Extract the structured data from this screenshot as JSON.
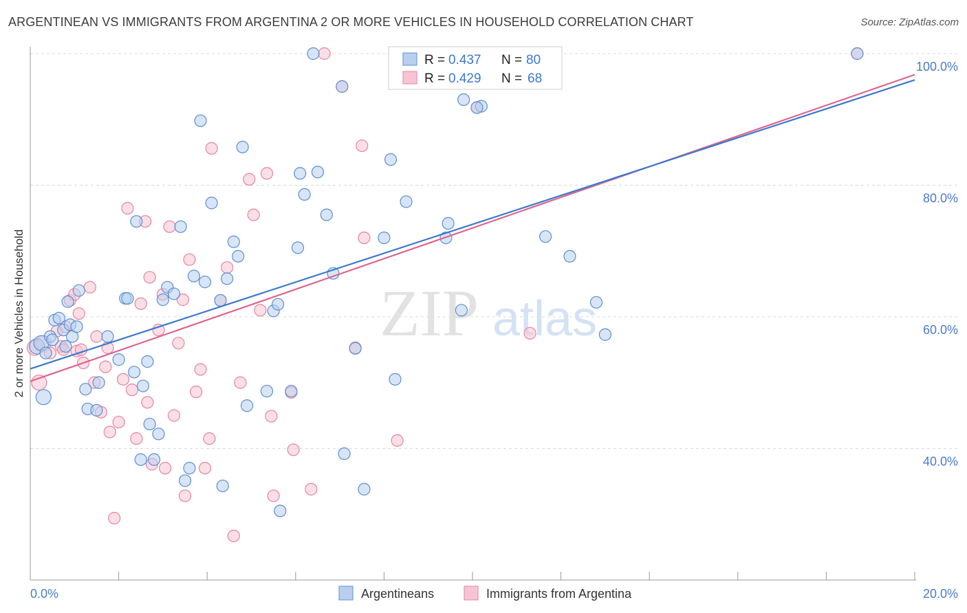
{
  "title": "ARGENTINEAN VS IMMIGRANTS FROM ARGENTINA 2 OR MORE VEHICLES IN HOUSEHOLD CORRELATION CHART",
  "source": "Source: ZipAtlas.com",
  "watermark": {
    "zip": "ZIP",
    "atlas": "atlas"
  },
  "colors": {
    "blue_fill": "#b8d0ee",
    "blue_stroke": "#5b8fd4",
    "blue_line": "#3b78d0",
    "pink_fill": "#f7c4d4",
    "pink_stroke": "#e7839f",
    "pink_line": "#e0648d",
    "tick_text": "#4a7cc9",
    "grid": "#d8d8d8"
  },
  "legend": {
    "r_label": "R =",
    "n_label": "N =",
    "series": [
      {
        "r": "0.437",
        "n": "80"
      },
      {
        "r": "0.429",
        "n": "68"
      }
    ]
  },
  "bottom_legend": [
    "Argentineans",
    "Immigrants from Argentina"
  ],
  "chart_data": {
    "type": "scatter",
    "title": "ARGENTINEAN VS IMMIGRANTS FROM ARGENTINA 2 OR MORE VEHICLES IN HOUSEHOLD CORRELATION CHART",
    "xlabel": "",
    "ylabel": "2 or more Vehicles in Household",
    "xlim": [
      0,
      20
    ],
    "ylim": [
      20,
      100
    ],
    "x_tick_labels": [
      "0.0%",
      "20.0%"
    ],
    "y_ticks": [
      40,
      60,
      80,
      100
    ],
    "y_tick_labels": [
      "40.0%",
      "60.0%",
      "80.0%",
      "100.0%"
    ],
    "grid": "horizontal dashed",
    "legend_position": "top-center",
    "series": [
      {
        "name": "Argentineans",
        "trend": {
          "x": [
            0,
            20
          ],
          "y": [
            52.1,
            96.0
          ]
        },
        "points": [
          [
            0.15,
            55.5
          ],
          [
            0.25,
            56
          ],
          [
            0.35,
            54.5
          ],
          [
            0.45,
            57
          ],
          [
            0.55,
            59.5
          ],
          [
            0.65,
            59.8
          ],
          [
            0.75,
            58
          ],
          [
            0.8,
            55.5
          ],
          [
            0.85,
            62.3
          ],
          [
            0.95,
            57
          ],
          [
            0.9,
            58.8
          ],
          [
            1.1,
            64
          ],
          [
            1.25,
            49
          ],
          [
            1.3,
            46
          ],
          [
            1.5,
            45.8
          ],
          [
            1.55,
            50
          ],
          [
            1.75,
            57
          ],
          [
            2.0,
            53.5
          ],
          [
            2.15,
            62.8
          ],
          [
            2.2,
            62.8
          ],
          [
            2.35,
            51.6
          ],
          [
            2.55,
            49.5
          ],
          [
            2.65,
            53.2
          ],
          [
            2.7,
            43.7
          ],
          [
            2.8,
            38.3
          ],
          [
            2.9,
            42.2
          ],
          [
            3.1,
            64.5
          ],
          [
            3.25,
            63.5
          ],
          [
            3.4,
            73.7
          ],
          [
            3.5,
            35.1
          ],
          [
            3.6,
            37
          ],
          [
            3.7,
            66.2
          ],
          [
            3.85,
            89.8
          ],
          [
            3.95,
            65.3
          ],
          [
            4.1,
            77.3
          ],
          [
            4.3,
            62.5
          ],
          [
            4.35,
            34.3
          ],
          [
            4.45,
            65.8
          ],
          [
            4.6,
            71.4
          ],
          [
            4.7,
            69.2
          ],
          [
            4.8,
            85.8
          ],
          [
            4.9,
            46.5
          ],
          [
            5.35,
            48.7
          ],
          [
            5.5,
            60.9
          ],
          [
            5.6,
            61.9
          ],
          [
            5.65,
            30.5
          ],
          [
            6.05,
            70.5
          ],
          [
            6.1,
            81.8
          ],
          [
            6.2,
            78.6
          ],
          [
            6.4,
            100
          ],
          [
            6.7,
            75.5
          ],
          [
            6.85,
            66.6
          ],
          [
            7.05,
            95
          ],
          [
            7.1,
            39.2
          ],
          [
            7.35,
            55.2
          ],
          [
            7.55,
            33.8
          ],
          [
            8.0,
            72
          ],
          [
            8.15,
            83.9
          ],
          [
            8.25,
            50.5
          ],
          [
            8.5,
            77.5
          ],
          [
            9.4,
            72
          ],
          [
            9.45,
            74.2
          ],
          [
            9.75,
            61
          ],
          [
            9.8,
            93
          ],
          [
            10.2,
            92
          ],
          [
            10.1,
            91.8
          ],
          [
            11.05,
            100
          ],
          [
            11.65,
            72.2
          ],
          [
            12.2,
            69.2
          ],
          [
            12.8,
            62.2
          ],
          [
            0.3,
            47.8
          ],
          [
            0.5,
            56.5
          ],
          [
            1.05,
            58.5
          ],
          [
            2.5,
            38.3
          ],
          [
            5.9,
            48.7
          ],
          [
            3.0,
            62.6
          ],
          [
            6.5,
            82
          ],
          [
            13.0,
            57.3
          ],
          [
            18.7,
            100
          ],
          [
            2.4,
            74.5
          ]
        ]
      },
      {
        "name": "Immigrants from Argentina",
        "trend": {
          "x": [
            0,
            20
          ],
          "y": [
            50.2,
            96.8
          ]
        },
        "points": [
          [
            0.1,
            55.3
          ],
          [
            0.2,
            50
          ],
          [
            0.3,
            56
          ],
          [
            0.45,
            54.5
          ],
          [
            0.6,
            57.8
          ],
          [
            0.7,
            55.5
          ],
          [
            0.75,
            55
          ],
          [
            0.8,
            58.5
          ],
          [
            0.9,
            62.5
          ],
          [
            1.0,
            63.4
          ],
          [
            1.05,
            54.8
          ],
          [
            1.1,
            60.5
          ],
          [
            1.15,
            55
          ],
          [
            1.2,
            53
          ],
          [
            1.35,
            64.5
          ],
          [
            1.45,
            50
          ],
          [
            1.5,
            57
          ],
          [
            1.6,
            45.5
          ],
          [
            1.7,
            52.4
          ],
          [
            1.75,
            55.3
          ],
          [
            1.8,
            42.5
          ],
          [
            1.9,
            29.4
          ],
          [
            2.0,
            44
          ],
          [
            2.1,
            50.5
          ],
          [
            2.2,
            76.5
          ],
          [
            2.3,
            48.9
          ],
          [
            2.4,
            41.5
          ],
          [
            2.5,
            62
          ],
          [
            2.6,
            74.5
          ],
          [
            2.65,
            47
          ],
          [
            2.7,
            66
          ],
          [
            2.75,
            37.6
          ],
          [
            2.9,
            58
          ],
          [
            3.0,
            63.4
          ],
          [
            3.05,
            37
          ],
          [
            3.15,
            73.7
          ],
          [
            3.25,
            45
          ],
          [
            3.35,
            56
          ],
          [
            3.45,
            62.6
          ],
          [
            3.5,
            32.8
          ],
          [
            3.6,
            68.7
          ],
          [
            3.75,
            48.6
          ],
          [
            3.85,
            52
          ],
          [
            3.95,
            37
          ],
          [
            4.05,
            41.5
          ],
          [
            4.1,
            85.6
          ],
          [
            4.3,
            62.5
          ],
          [
            4.45,
            67.5
          ],
          [
            4.6,
            26.7
          ],
          [
            4.75,
            50
          ],
          [
            4.95,
            80.9
          ],
          [
            5.05,
            75.5
          ],
          [
            5.2,
            61
          ],
          [
            5.35,
            81.8
          ],
          [
            5.45,
            44.9
          ],
          [
            5.5,
            32.8
          ],
          [
            5.9,
            48.5
          ],
          [
            5.95,
            39.8
          ],
          [
            6.35,
            33.8
          ],
          [
            6.65,
            100
          ],
          [
            7.05,
            95
          ],
          [
            7.35,
            55.3
          ],
          [
            7.5,
            86
          ],
          [
            7.55,
            72
          ],
          [
            8.3,
            41.2
          ],
          [
            11.3,
            57.5
          ],
          [
            10.1,
            91.8
          ],
          [
            18.7,
            100
          ]
        ]
      }
    ]
  }
}
